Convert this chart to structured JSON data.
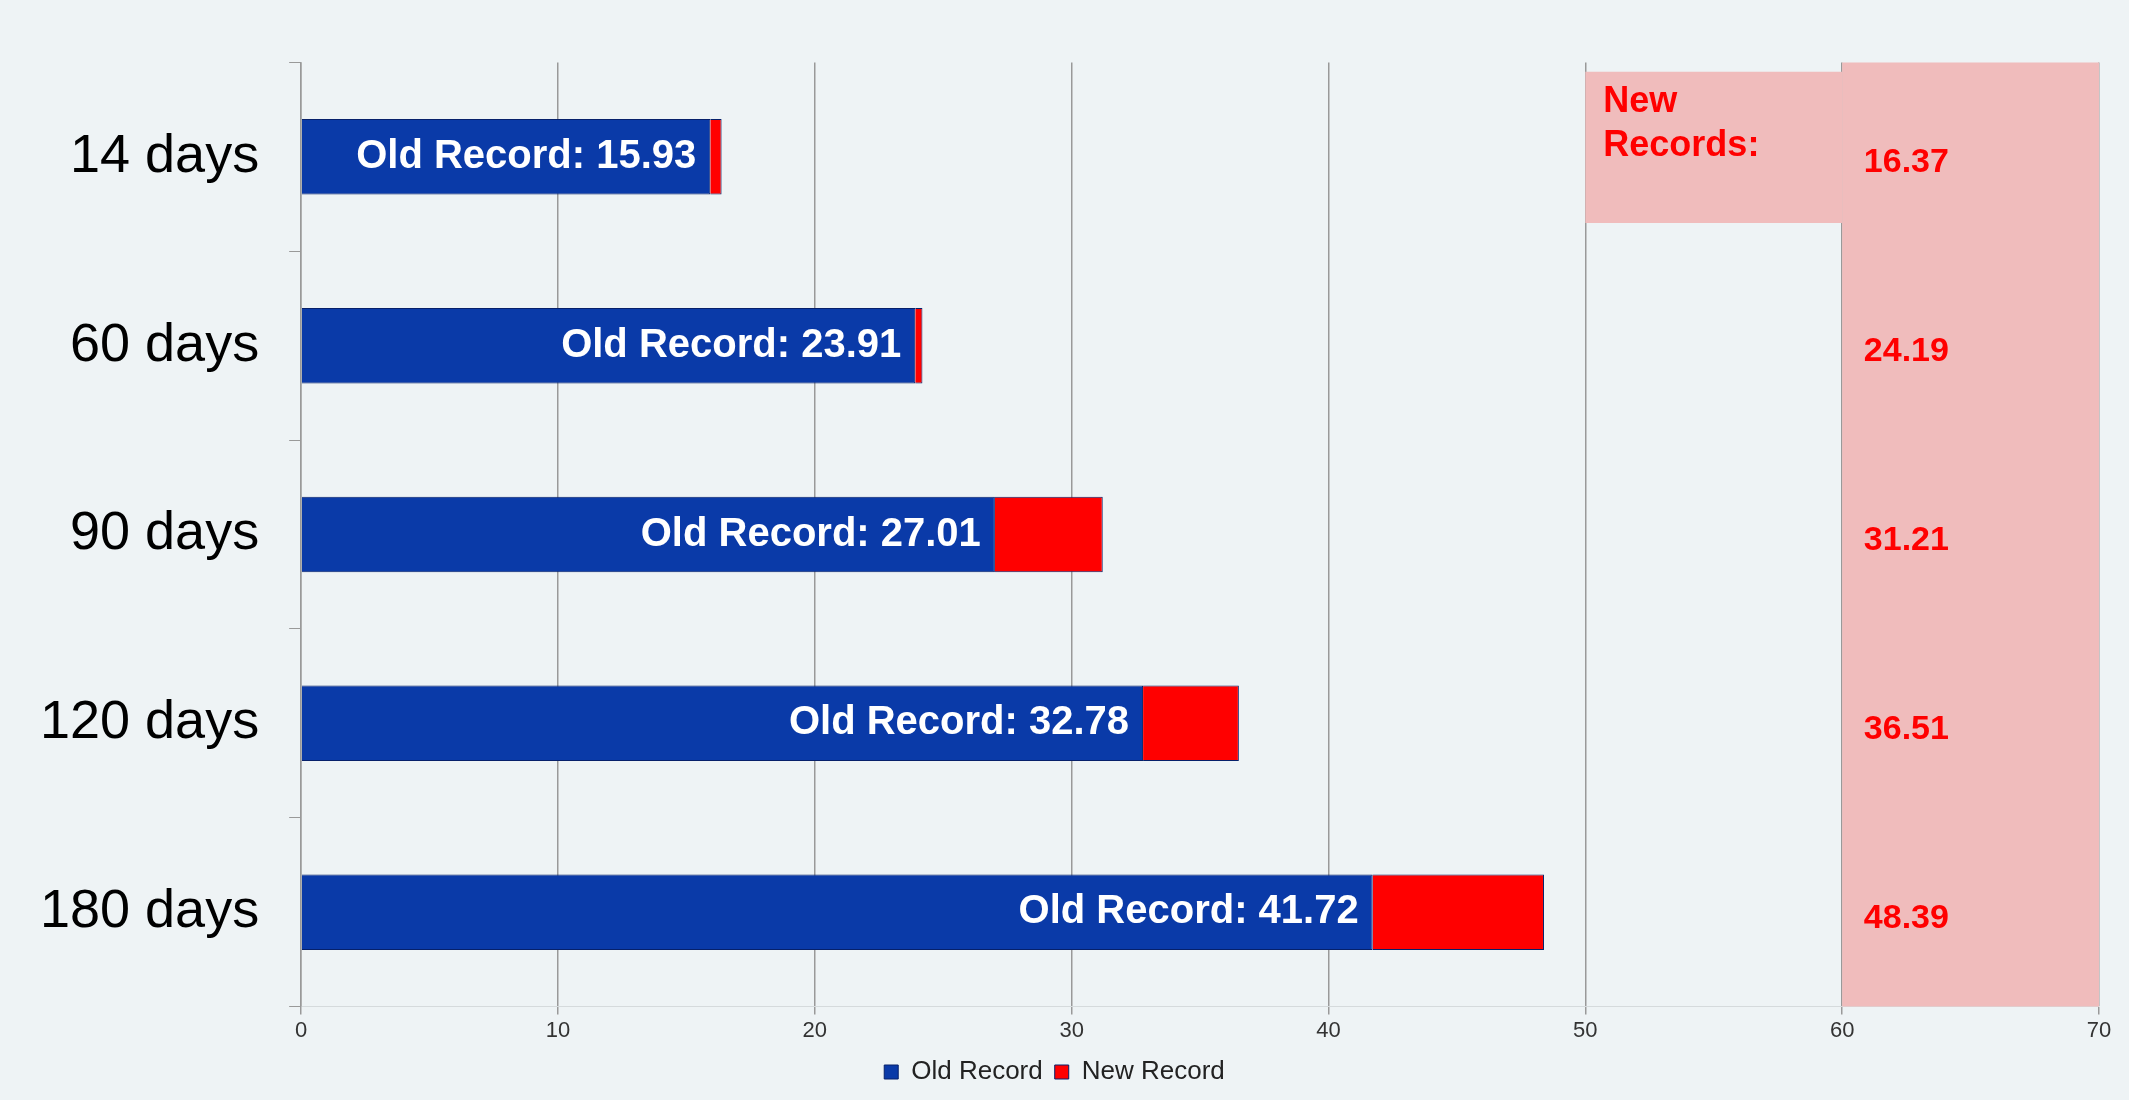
{
  "chart_data": {
    "type": "bar",
    "orientation": "horizontal",
    "stacked": true,
    "categories": [
      "14 days",
      "60 days",
      "90 days",
      "120 days",
      "180 days"
    ],
    "series": [
      {
        "name": "Old Record",
        "color": "#0a3aa8",
        "values": [
          15.93,
          23.91,
          27.01,
          32.78,
          41.72
        ],
        "value_labels": [
          "Old Record: 15.93",
          "Old Record: 23.91",
          "Old Record: 27.01",
          "Old Record: 32.78",
          "Old Record: 41.72"
        ]
      },
      {
        "name": "New Record",
        "color": "#ff0000",
        "values": [
          0.44,
          0.28,
          4.2,
          3.73,
          6.67
        ]
      }
    ],
    "annotations": [
      "16.37",
      "24.19",
      "31.21",
      "36.51",
      "48.39"
    ],
    "xlim": [
      0,
      70
    ],
    "xticks": [
      0,
      10,
      20,
      30,
      40,
      50,
      60,
      70
    ],
    "grid": "x",
    "legend": "bottom",
    "bands": [
      {
        "axis": "x",
        "from": 60,
        "to": 70,
        "color": "#f0bcbc",
        "label": "New Records:"
      }
    ]
  }
}
